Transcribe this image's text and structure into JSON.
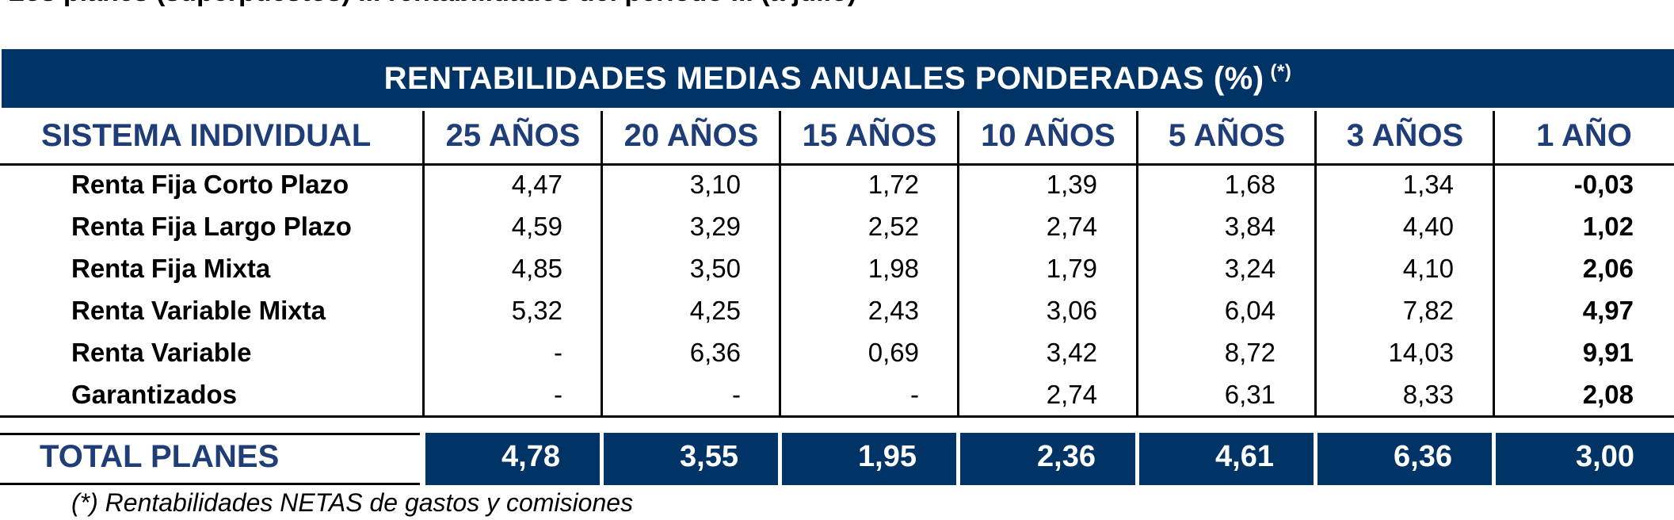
{
  "top_text": "Los planes (superpuestos) ... rentabilidades del periodo ... (a julio)",
  "table": {
    "title": "RENTABILIDADES MEDIAS ANUALES PONDERADAS (%)",
    "title_note": "(*)",
    "header_first": "SISTEMA INDIVIDUAL",
    "columns": [
      "25 AÑOS",
      "20 AÑOS",
      "15 AÑOS",
      "10 AÑOS",
      "5 AÑOS",
      "3 AÑOS",
      "1 AÑO"
    ],
    "rows": [
      {
        "label": "Renta Fija Corto Plazo",
        "values": [
          "4,47",
          "3,10",
          "1,72",
          "1,39",
          "1,68",
          "1,34",
          "-0,03"
        ]
      },
      {
        "label": "Renta Fija Largo Plazo",
        "values": [
          "4,59",
          "3,29",
          "2,52",
          "2,74",
          "3,84",
          "4,40",
          "1,02"
        ]
      },
      {
        "label": "Renta Fija Mixta",
        "values": [
          "4,85",
          "3,50",
          "1,98",
          "1,79",
          "3,24",
          "4,10",
          "2,06"
        ]
      },
      {
        "label": "Renta Variable Mixta",
        "values": [
          "5,32",
          "4,25",
          "2,43",
          "3,06",
          "6,04",
          "7,82",
          "4,97"
        ]
      },
      {
        "label": "Renta Variable",
        "values": [
          "-",
          "6,36",
          "0,69",
          "3,42",
          "8,72",
          "14,03",
          "9,91"
        ]
      },
      {
        "label": "Garantizados",
        "values": [
          "-",
          "-",
          "-",
          "2,74",
          "6,31",
          "8,33",
          "2,08"
        ]
      }
    ],
    "total_label": "TOTAL PLANES",
    "total_values": [
      "4,78",
      "3,55",
      "1,95",
      "2,36",
      "4,61",
      "6,36",
      "3,00"
    ],
    "footnote": "(*) Rentabilidades NETAS de gastos y comisiones"
  },
  "colors": {
    "navy": "#003366",
    "header_text": "#1f3e78"
  }
}
